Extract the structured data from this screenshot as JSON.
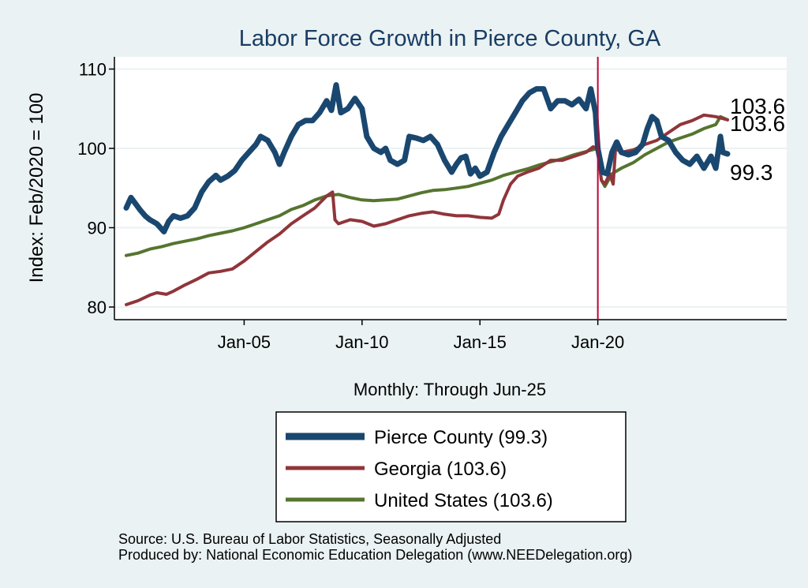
{
  "colors": {
    "background": "#eaf2f3",
    "plot_bg": "#ffffff",
    "pierce": "#1a476f",
    "georgia": "#90353b",
    "us": "#55752f",
    "event_line": "#c10534",
    "title": "#1a3d63"
  },
  "chart_data": {
    "type": "line",
    "title": "Labor Force Growth in Pierce  County, GA",
    "xlabel": "Monthly: Through Jun-25",
    "ylabel": "Index: Feb/2020 = 100",
    "x_range": [
      2000.0,
      2025.5
    ],
    "ylim": [
      79,
      111
    ],
    "y_ticks": [
      80,
      90,
      100,
      110
    ],
    "x_ticks": [
      {
        "label": "Jan-05",
        "x": 2005.0
      },
      {
        "label": "Jan-10",
        "x": 2010.0
      },
      {
        "label": "Jan-15",
        "x": 2015.0
      },
      {
        "label": "Jan-20",
        "x": 2020.0
      }
    ],
    "vertical_line_x": 2020.0,
    "grid": true,
    "legend_position": "bottom",
    "series": [
      {
        "name": "Pierce  County (99.3)",
        "key": "pierce",
        "end_label": "99.3",
        "points": [
          [
            2000.0,
            92.5
          ],
          [
            2000.2,
            93.8
          ],
          [
            2000.4,
            93.0
          ],
          [
            2000.6,
            92.2
          ],
          [
            2000.8,
            91.5
          ],
          [
            2001.0,
            91.0
          ],
          [
            2001.3,
            90.5
          ],
          [
            2001.6,
            89.5
          ],
          [
            2001.8,
            90.8
          ],
          [
            2002.0,
            91.5
          ],
          [
            2002.3,
            91.2
          ],
          [
            2002.6,
            91.5
          ],
          [
            2002.9,
            92.5
          ],
          [
            2003.2,
            94.5
          ],
          [
            2003.5,
            95.8
          ],
          [
            2003.8,
            96.6
          ],
          [
            2004.0,
            96.0
          ],
          [
            2004.3,
            96.5
          ],
          [
            2004.6,
            97.2
          ],
          [
            2004.9,
            98.5
          ],
          [
            2005.2,
            99.5
          ],
          [
            2005.5,
            100.5
          ],
          [
            2005.7,
            101.5
          ],
          [
            2006.0,
            101.0
          ],
          [
            2006.3,
            99.5
          ],
          [
            2006.5,
            98.0
          ],
          [
            2006.7,
            99.5
          ],
          [
            2007.0,
            101.5
          ],
          [
            2007.3,
            103.0
          ],
          [
            2007.6,
            103.5
          ],
          [
            2007.9,
            103.5
          ],
          [
            2008.2,
            104.5
          ],
          [
            2008.5,
            106.0
          ],
          [
            2008.7,
            104.8
          ],
          [
            2008.9,
            108.0
          ],
          [
            2009.1,
            104.5
          ],
          [
            2009.4,
            105.0
          ],
          [
            2009.7,
            106.3
          ],
          [
            2010.0,
            105.0
          ],
          [
            2010.2,
            101.5
          ],
          [
            2010.5,
            100.0
          ],
          [
            2010.8,
            99.5
          ],
          [
            2011.0,
            100.0
          ],
          [
            2011.2,
            98.5
          ],
          [
            2011.5,
            98.0
          ],
          [
            2011.8,
            98.5
          ],
          [
            2012.0,
            101.5
          ],
          [
            2012.3,
            101.3
          ],
          [
            2012.6,
            101.0
          ],
          [
            2012.9,
            101.5
          ],
          [
            2013.2,
            100.5
          ],
          [
            2013.5,
            98.5
          ],
          [
            2013.8,
            97.0
          ],
          [
            2014.0,
            98.0
          ],
          [
            2014.2,
            98.8
          ],
          [
            2014.4,
            99.0
          ],
          [
            2014.6,
            96.8
          ],
          [
            2014.8,
            97.5
          ],
          [
            2015.0,
            96.5
          ],
          [
            2015.3,
            97.0
          ],
          [
            2015.6,
            99.5
          ],
          [
            2015.9,
            101.5
          ],
          [
            2016.2,
            103.0
          ],
          [
            2016.5,
            104.5
          ],
          [
            2016.8,
            106.0
          ],
          [
            2017.1,
            107.0
          ],
          [
            2017.4,
            107.5
          ],
          [
            2017.7,
            107.5
          ],
          [
            2018.0,
            105.0
          ],
          [
            2018.3,
            106.0
          ],
          [
            2018.6,
            106.0
          ],
          [
            2018.9,
            105.5
          ],
          [
            2019.2,
            106.2
          ],
          [
            2019.5,
            105.0
          ],
          [
            2019.7,
            107.5
          ],
          [
            2019.9,
            104.5
          ],
          [
            2020.0,
            100.0
          ],
          [
            2020.2,
            97.0
          ],
          [
            2020.4,
            96.8
          ],
          [
            2020.6,
            99.5
          ],
          [
            2020.8,
            100.8
          ],
          [
            2021.0,
            99.5
          ],
          [
            2021.3,
            99.2
          ],
          [
            2021.6,
            99.5
          ],
          [
            2021.9,
            100.5
          ],
          [
            2022.1,
            102.5
          ],
          [
            2022.3,
            104.0
          ],
          [
            2022.5,
            103.5
          ],
          [
            2022.7,
            101.5
          ],
          [
            2023.0,
            101.0
          ],
          [
            2023.3,
            99.5
          ],
          [
            2023.6,
            98.5
          ],
          [
            2023.9,
            98.0
          ],
          [
            2024.2,
            99.0
          ],
          [
            2024.5,
            97.5
          ],
          [
            2024.8,
            99.0
          ],
          [
            2025.0,
            97.5
          ],
          [
            2025.2,
            101.5
          ],
          [
            2025.3,
            99.5
          ],
          [
            2025.5,
            99.3
          ]
        ]
      },
      {
        "name": "Georgia (103.6)",
        "key": "georgia",
        "end_label": "103.6",
        "points": [
          [
            2000.0,
            80.3
          ],
          [
            2000.5,
            80.8
          ],
          [
            2001.0,
            81.5
          ],
          [
            2001.3,
            81.8
          ],
          [
            2001.7,
            81.6
          ],
          [
            2002.0,
            82.0
          ],
          [
            2002.5,
            82.8
          ],
          [
            2003.0,
            83.5
          ],
          [
            2003.5,
            84.3
          ],
          [
            2004.0,
            84.5
          ],
          [
            2004.5,
            84.8
          ],
          [
            2005.0,
            85.8
          ],
          [
            2005.5,
            87.0
          ],
          [
            2006.0,
            88.2
          ],
          [
            2006.5,
            89.2
          ],
          [
            2007.0,
            90.5
          ],
          [
            2007.5,
            91.5
          ],
          [
            2008.0,
            92.5
          ],
          [
            2008.5,
            94.0
          ],
          [
            2008.75,
            94.5
          ],
          [
            2008.85,
            91.0
          ],
          [
            2009.0,
            90.5
          ],
          [
            2009.5,
            91.0
          ],
          [
            2010.0,
            90.8
          ],
          [
            2010.5,
            90.2
          ],
          [
            2011.0,
            90.5
          ],
          [
            2011.5,
            91.0
          ],
          [
            2012.0,
            91.5
          ],
          [
            2012.5,
            91.8
          ],
          [
            2013.0,
            92.0
          ],
          [
            2013.5,
            91.7
          ],
          [
            2014.0,
            91.5
          ],
          [
            2014.5,
            91.5
          ],
          [
            2015.0,
            91.3
          ],
          [
            2015.5,
            91.2
          ],
          [
            2015.8,
            91.7
          ],
          [
            2016.0,
            93.5
          ],
          [
            2016.3,
            95.5
          ],
          [
            2016.6,
            96.5
          ],
          [
            2017.0,
            97.0
          ],
          [
            2017.5,
            97.5
          ],
          [
            2018.0,
            98.5
          ],
          [
            2018.5,
            98.5
          ],
          [
            2019.0,
            99.0
          ],
          [
            2019.5,
            99.5
          ],
          [
            2019.8,
            100.2
          ],
          [
            2020.0,
            100.0
          ],
          [
            2020.15,
            96.0
          ],
          [
            2020.3,
            95.5
          ],
          [
            2020.5,
            96.8
          ],
          [
            2020.65,
            95.5
          ],
          [
            2020.75,
            100.0
          ],
          [
            2021.0,
            99.5
          ],
          [
            2021.5,
            99.8
          ],
          [
            2022.0,
            100.5
          ],
          [
            2022.5,
            101.0
          ],
          [
            2023.0,
            102.0
          ],
          [
            2023.5,
            103.0
          ],
          [
            2024.0,
            103.5
          ],
          [
            2024.5,
            104.2
          ],
          [
            2025.0,
            104.0
          ],
          [
            2025.5,
            103.6
          ]
        ]
      },
      {
        "name": "United States (103.6)",
        "key": "us",
        "end_label": "103.6",
        "points": [
          [
            2000.0,
            86.5
          ],
          [
            2000.5,
            86.8
          ],
          [
            2001.0,
            87.3
          ],
          [
            2001.5,
            87.6
          ],
          [
            2002.0,
            88.0
          ],
          [
            2002.5,
            88.3
          ],
          [
            2003.0,
            88.6
          ],
          [
            2003.5,
            89.0
          ],
          [
            2004.0,
            89.3
          ],
          [
            2004.5,
            89.6
          ],
          [
            2005.0,
            90.0
          ],
          [
            2005.5,
            90.5
          ],
          [
            2006.0,
            91.0
          ],
          [
            2006.5,
            91.5
          ],
          [
            2007.0,
            92.3
          ],
          [
            2007.5,
            92.8
          ],
          [
            2008.0,
            93.5
          ],
          [
            2008.5,
            94.0
          ],
          [
            2009.0,
            94.2
          ],
          [
            2009.5,
            93.8
          ],
          [
            2010.0,
            93.5
          ],
          [
            2010.5,
            93.4
          ],
          [
            2011.0,
            93.5
          ],
          [
            2011.5,
            93.6
          ],
          [
            2012.0,
            94.0
          ],
          [
            2012.5,
            94.4
          ],
          [
            2013.0,
            94.7
          ],
          [
            2013.5,
            94.8
          ],
          [
            2014.0,
            95.0
          ],
          [
            2014.5,
            95.2
          ],
          [
            2015.0,
            95.6
          ],
          [
            2015.5,
            96.0
          ],
          [
            2016.0,
            96.6
          ],
          [
            2016.5,
            97.0
          ],
          [
            2017.0,
            97.4
          ],
          [
            2017.5,
            97.9
          ],
          [
            2018.0,
            98.3
          ],
          [
            2018.5,
            98.7
          ],
          [
            2019.0,
            99.2
          ],
          [
            2019.5,
            99.6
          ],
          [
            2020.0,
            100.0
          ],
          [
            2020.15,
            96.0
          ],
          [
            2020.3,
            95.2
          ],
          [
            2020.6,
            96.8
          ],
          [
            2021.0,
            97.5
          ],
          [
            2021.5,
            98.2
          ],
          [
            2022.0,
            99.2
          ],
          [
            2022.5,
            100.0
          ],
          [
            2023.0,
            100.8
          ],
          [
            2023.5,
            101.3
          ],
          [
            2024.0,
            101.8
          ],
          [
            2024.5,
            102.5
          ],
          [
            2025.0,
            103.0
          ],
          [
            2025.2,
            104.0
          ],
          [
            2025.5,
            103.6
          ]
        ]
      }
    ]
  },
  "footer": {
    "source": "Source: U.S. Bureau of Labor Statistics, Seasonally Adjusted",
    "produced": "Produced by: National Economic Education Delegation (www.NEEDelegation.org)"
  }
}
